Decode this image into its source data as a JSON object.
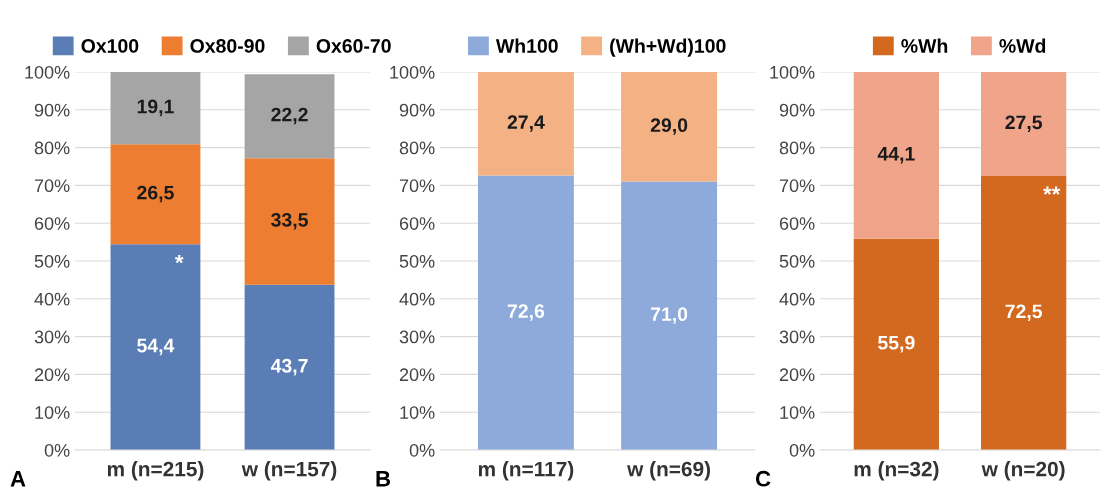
{
  "chart_data": [
    {
      "type": "bar",
      "stacked": true,
      "categories": [
        "m (n=215)",
        "w (n=157)"
      ],
      "legend": "top",
      "grid": "y",
      "series": [
        {
          "name": "Ox100",
          "color": "#5b7db6",
          "values": [
            54.4,
            43.7
          ],
          "value_labels": [
            "54,4",
            "43,7"
          ]
        },
        {
          "name": "Ox80-90",
          "color": "#ed7d31",
          "values": [
            26.5,
            33.5
          ],
          "value_labels": [
            "26,5",
            "33,5"
          ]
        },
        {
          "name": "Ox60-70",
          "color": "#a5a5a5",
          "values": [
            19.1,
            22.2
          ],
          "value_labels": [
            "19,1",
            "22,2"
          ]
        }
      ],
      "ylim": [
        0,
        100
      ],
      "yticks": [
        {
          "value": 0,
          "label": "0%"
        },
        {
          "value": 10,
          "label": "10%"
        },
        {
          "value": 20,
          "label": "20%"
        },
        {
          "value": 30,
          "label": "30%"
        },
        {
          "value": 40,
          "label": "40%"
        },
        {
          "value": 50,
          "label": "50%"
        },
        {
          "value": 60,
          "label": "60%"
        },
        {
          "value": 70,
          "label": "70%"
        },
        {
          "value": 80,
          "label": "80%"
        },
        {
          "value": 90,
          "label": "90%"
        },
        {
          "value": 100,
          "label": "100%"
        }
      ],
      "annotations": [
        "A",
        {
          "text": "*",
          "x": "m (n=215)",
          "y": 54.4
        }
      ]
    },
    {
      "type": "bar",
      "stacked": true,
      "categories": [
        "m (n=117)",
        "w (n=69)"
      ],
      "legend": "top",
      "grid": "y",
      "series": [
        {
          "name": "Wh100",
          "color": "#8eaadb",
          "values": [
            72.6,
            71.0
          ],
          "value_labels": [
            "72,6",
            "71,0"
          ]
        },
        {
          "name": "(Wh+Wd)100",
          "color": "#f4b183",
          "values": [
            27.4,
            29.0
          ],
          "value_labels": [
            "27,4",
            "29,0"
          ]
        }
      ],
      "ylim": [
        0,
        100
      ],
      "yticks": [
        {
          "value": 0,
          "label": "0%"
        },
        {
          "value": 10,
          "label": "10%"
        },
        {
          "value": 20,
          "label": "20%"
        },
        {
          "value": 30,
          "label": "30%"
        },
        {
          "value": 40,
          "label": "40%"
        },
        {
          "value": 50,
          "label": "50%"
        },
        {
          "value": 60,
          "label": "60%"
        },
        {
          "value": 70,
          "label": "70%"
        },
        {
          "value": 80,
          "label": "80%"
        },
        {
          "value": 90,
          "label": "90%"
        },
        {
          "value": 100,
          "label": "100%"
        }
      ],
      "annotations": [
        "B"
      ]
    },
    {
      "type": "bar",
      "stacked": true,
      "categories": [
        "m (n=32)",
        "w (n=20)"
      ],
      "legend": "top",
      "grid": "y",
      "series": [
        {
          "name": "%Wh",
          "color": "#d2691e",
          "values": [
            55.9,
            72.5
          ],
          "value_labels": [
            "55,9",
            "72,5"
          ]
        },
        {
          "name": "%Wd",
          "color": "#f0a58a",
          "values": [
            44.1,
            27.5
          ],
          "value_labels": [
            "44,1",
            "27,5"
          ]
        }
      ],
      "ylim": [
        0,
        100
      ],
      "yticks": [
        {
          "value": 0,
          "label": "0%"
        },
        {
          "value": 10,
          "label": "10%"
        },
        {
          "value": 20,
          "label": "20%"
        },
        {
          "value": 30,
          "label": "30%"
        },
        {
          "value": 40,
          "label": "40%"
        },
        {
          "value": 50,
          "label": "50%"
        },
        {
          "value": 60,
          "label": "60%"
        },
        {
          "value": 70,
          "label": "70%"
        },
        {
          "value": 80,
          "label": "80%"
        },
        {
          "value": 90,
          "label": "90%"
        },
        {
          "value": 100,
          "label": "100%"
        }
      ],
      "annotations": [
        "C",
        {
          "text": "**",
          "x": "w (n=20)",
          "y": 72.5
        }
      ]
    }
  ]
}
